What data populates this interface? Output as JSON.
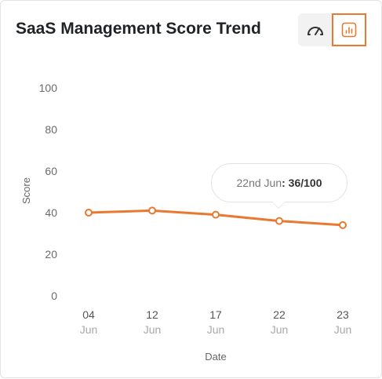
{
  "title": "SaaS Management Score Trend",
  "toggle": {
    "gauge_icon": "gauge-icon",
    "chart_icon": "bar-chart-icon",
    "active": "chart"
  },
  "colors": {
    "accent": "#e8792f",
    "active_border": "#e8792f"
  },
  "tooltip": {
    "date": "22nd Jun",
    "separator": ":",
    "value": "36/100"
  },
  "chart_data": {
    "type": "line",
    "title": "SaaS Management Score Trend",
    "xlabel": "Date",
    "ylabel": "Score",
    "ylim": [
      0,
      100
    ],
    "yticks": [
      "100",
      "80",
      "60",
      "40",
      "20",
      "0"
    ],
    "categories": [
      {
        "day": "04",
        "month": "Jun"
      },
      {
        "day": "12",
        "month": "Jun"
      },
      {
        "day": "17",
        "month": "Jun"
      },
      {
        "day": "22",
        "month": "Jun"
      },
      {
        "day": "23",
        "month": "Jun"
      }
    ],
    "series": [
      {
        "values": [
          40,
          41,
          39,
          36,
          34
        ]
      }
    ],
    "grid": false,
    "legend": "none"
  }
}
